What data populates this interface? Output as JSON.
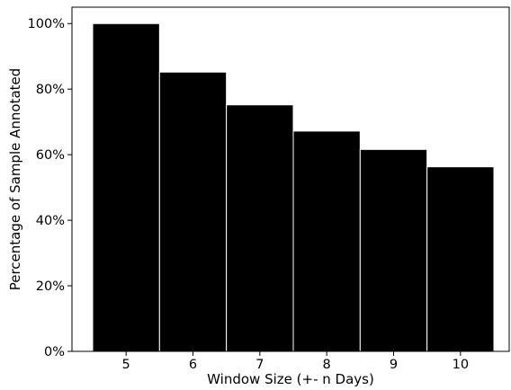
{
  "chart_data": {
    "type": "bar",
    "title": "",
    "xlabel": "Window Size (+- n Days)",
    "ylabel": "Percentage of Sample Annotated",
    "categories": [
      "5",
      "6",
      "7",
      "8",
      "9",
      "10"
    ],
    "values": [
      100,
      85.2,
      75.2,
      67.2,
      61.6,
      56.3
    ],
    "ylim": [
      0,
      105
    ],
    "yticks": [
      0,
      20,
      40,
      60,
      80,
      100
    ],
    "ytick_labels": [
      "0%",
      "20%",
      "40%",
      "60%",
      "80%",
      "100%"
    ],
    "y_unit": "%",
    "grid": false,
    "legend": "none",
    "bar_color": "#000000",
    "bar_edge_color": "#ffffff"
  }
}
